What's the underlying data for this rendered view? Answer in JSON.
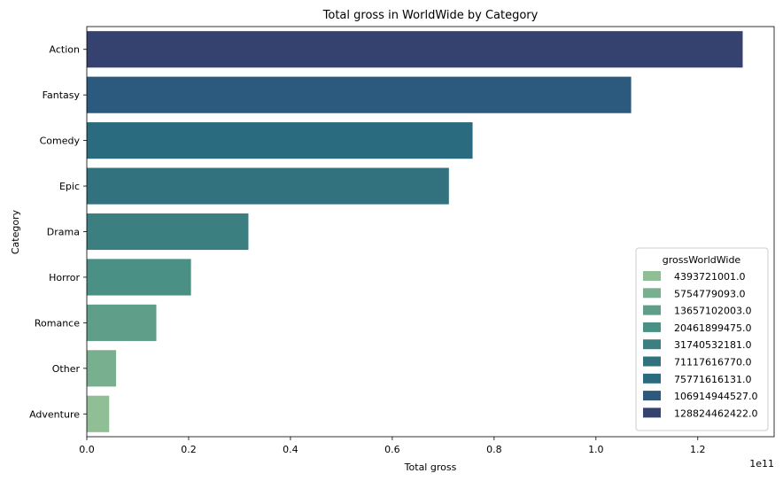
{
  "chart_data": {
    "type": "bar",
    "orientation": "horizontal",
    "title": "Total gross in WorldWide by Category",
    "xlabel": "Total gross",
    "ylabel": "Category",
    "x_scale_label": "1e11",
    "xlim": [
      0,
      1.35
    ],
    "x_ticks": [
      "0.0",
      "0.2",
      "0.4",
      "0.6",
      "0.8",
      "1.0",
      "1.2"
    ],
    "categories": [
      "Action",
      "Fantasy",
      "Comedy",
      "Epic",
      "Drama",
      "Horror",
      "Romance",
      "Other",
      "Adventure"
    ],
    "values": [
      128824462422.0,
      106914944527.0,
      75771616131.0,
      71117616770.0,
      31740532181.0,
      20461899475.0,
      13657102003.0,
      5754779093.0,
      4393721001.0
    ],
    "colors": [
      "#35426f",
      "#2c5a7e",
      "#2b6b7f",
      "#32727f",
      "#3c7f80",
      "#4b9085",
      "#5f9e88",
      "#78b08f",
      "#91bf95"
    ],
    "legend": {
      "title": "grossWorldWide",
      "placement": "lower-right",
      "entries": [
        {
          "label": "4393721001.0",
          "color": "#91bf95"
        },
        {
          "label": "5754779093.0",
          "color": "#78b08f"
        },
        {
          "label": "13657102003.0",
          "color": "#5f9e88"
        },
        {
          "label": "20461899475.0",
          "color": "#4b9085"
        },
        {
          "label": "31740532181.0",
          "color": "#3c7f80"
        },
        {
          "label": "71117616770.0",
          "color": "#32727f"
        },
        {
          "label": "75771616131.0",
          "color": "#2b6b7f"
        },
        {
          "label": "106914944527.0",
          "color": "#2c5a7e"
        },
        {
          "label": "128824462422.0",
          "color": "#35426f"
        }
      ]
    }
  }
}
